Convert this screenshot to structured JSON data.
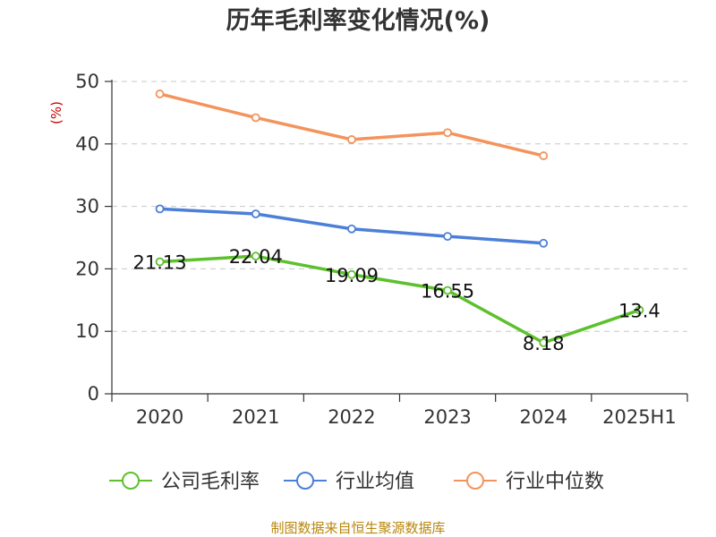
{
  "chart_data": {
    "type": "line",
    "title": "历年毛利率变化情况(%)",
    "ylabel": "(%)",
    "xlabel": "",
    "categories": [
      "2020",
      "2021",
      "2022",
      "2023",
      "2024",
      "2025H1"
    ],
    "ylim": [
      0,
      50
    ],
    "yticks": [
      0,
      10,
      20,
      30,
      40,
      50
    ],
    "grid": true,
    "legend_position": "bottom",
    "series": [
      {
        "name": "公司毛利率",
        "color": "#5cc12d",
        "values": [
          21.13,
          22.04,
          19.09,
          16.55,
          8.18,
          13.4
        ],
        "labels": [
          "21.13",
          "22.04",
          "19.09",
          "16.55",
          "8.18",
          "13.4"
        ]
      },
      {
        "name": "行业均值",
        "color": "#4c7fd8",
        "values": [
          29.6,
          28.8,
          26.4,
          25.2,
          24.1,
          null
        ]
      },
      {
        "name": "行业中位数",
        "color": "#f4935c",
        "values": [
          48.0,
          44.2,
          40.7,
          41.8,
          38.1,
          null
        ]
      }
    ]
  },
  "source": "制图数据来自恒生聚源数据库"
}
